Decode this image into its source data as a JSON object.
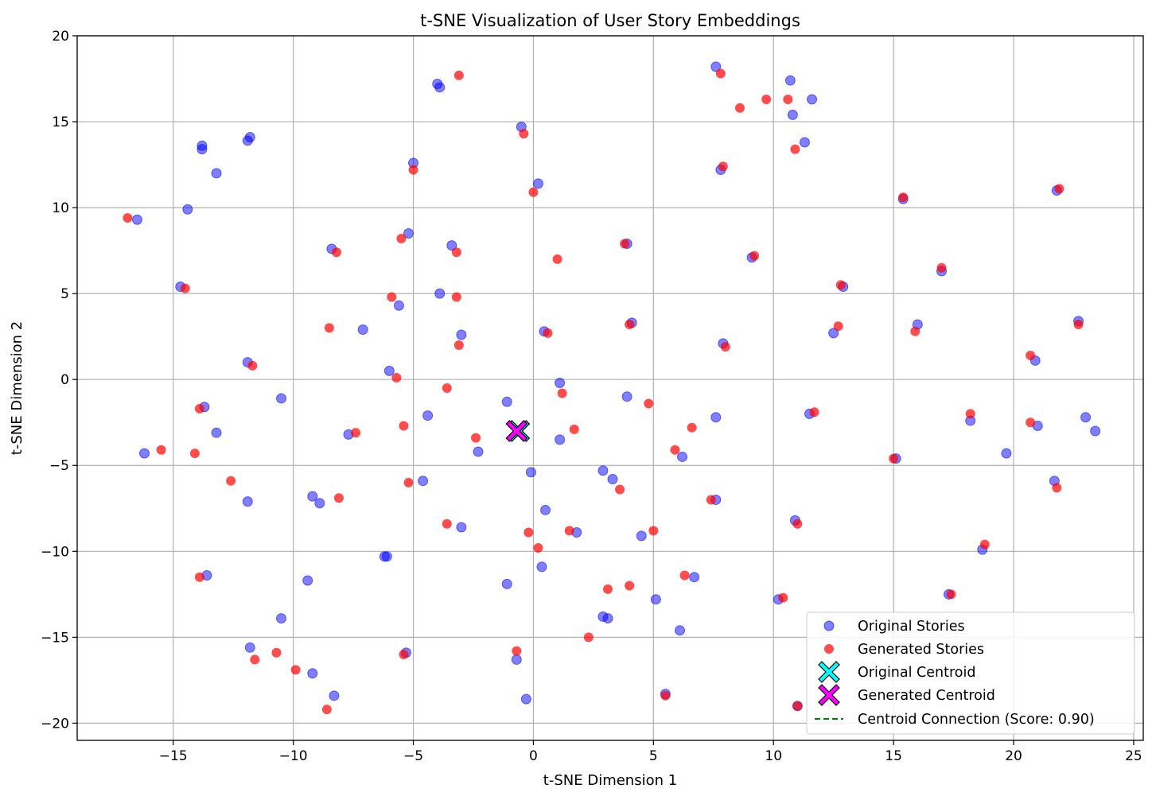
{
  "chart_data": {
    "type": "scatter",
    "title": "t-SNE Visualization of User Story Embeddings",
    "xlabel": "t-SNE Dimension 1",
    "ylabel": "t-SNE Dimension 2",
    "xlim": [
      -19,
      25.4
    ],
    "ylim": [
      -21,
      20
    ],
    "xticks": [
      -15,
      -10,
      -5,
      0,
      5,
      10,
      15,
      20,
      25
    ],
    "yticks": [
      -20,
      -15,
      -10,
      -5,
      0,
      5,
      10,
      15,
      20
    ],
    "grid": true,
    "legend_position": "bottom-right",
    "series": [
      {
        "name": "Original Stories",
        "color": "#0000ff",
        "points": [
          [
            -16.5,
            9.3
          ],
          [
            -14.4,
            9.9
          ],
          [
            -13.8,
            13.6
          ],
          [
            -13.8,
            13.4
          ],
          [
            -13.2,
            12.0
          ],
          [
            -11.8,
            14.1
          ],
          [
            -11.9,
            13.9
          ],
          [
            -14.7,
            5.4
          ],
          [
            -16.2,
            -4.3
          ],
          [
            -13.7,
            -1.6
          ],
          [
            -13.2,
            -3.1
          ],
          [
            -11.9,
            1.0
          ],
          [
            -11.9,
            -7.1
          ],
          [
            -10.5,
            -1.1
          ],
          [
            -13.6,
            -11.4
          ],
          [
            -11.8,
            -15.6
          ],
          [
            -10.5,
            -13.9
          ],
          [
            -9.4,
            -11.7
          ],
          [
            -9.2,
            -17.1
          ],
          [
            -9.2,
            -6.8
          ],
          [
            -8.9,
            -7.2
          ],
          [
            -8.3,
            -18.4
          ],
          [
            -8.4,
            7.6
          ],
          [
            -7.1,
            2.9
          ],
          [
            -7.7,
            -3.2
          ],
          [
            -6.1,
            -10.3
          ],
          [
            -6.2,
            -10.3
          ],
          [
            -6.0,
            0.5
          ],
          [
            -5.6,
            4.3
          ],
          [
            -4.6,
            -5.9
          ],
          [
            -4.4,
            -2.1
          ],
          [
            -5.3,
            -15.9
          ],
          [
            -5.2,
            8.5
          ],
          [
            -5.0,
            12.6
          ],
          [
            -4.0,
            17.2
          ],
          [
            -3.9,
            17.0
          ],
          [
            -3.9,
            5.0
          ],
          [
            -3.4,
            7.8
          ],
          [
            -3.0,
            2.6
          ],
          [
            -3.0,
            -8.6
          ],
          [
            -2.3,
            -4.2
          ],
          [
            -1.1,
            -1.3
          ],
          [
            -1.1,
            -11.9
          ],
          [
            -0.7,
            -16.3
          ],
          [
            -0.5,
            14.7
          ],
          [
            -0.3,
            -18.6
          ],
          [
            -0.1,
            -5.4
          ],
          [
            0.2,
            11.4
          ],
          [
            0.35,
            -10.9
          ],
          [
            0.45,
            2.8
          ],
          [
            0.5,
            -7.6
          ],
          [
            1.1,
            -0.2
          ],
          [
            1.1,
            -3.5
          ],
          [
            1.8,
            -8.9
          ],
          [
            2.9,
            -5.3
          ],
          [
            2.9,
            -13.8
          ],
          [
            3.1,
            -13.9
          ],
          [
            3.3,
            -5.8
          ],
          [
            3.9,
            7.9
          ],
          [
            3.9,
            -1.0
          ],
          [
            4.1,
            3.3
          ],
          [
            4.5,
            -9.1
          ],
          [
            5.1,
            -12.8
          ],
          [
            5.5,
            -18.3
          ],
          [
            6.1,
            -14.6
          ],
          [
            6.2,
            -4.5
          ],
          [
            6.7,
            -11.5
          ],
          [
            7.6,
            -2.2
          ],
          [
            7.6,
            -7.0
          ],
          [
            7.6,
            18.2
          ],
          [
            7.8,
            12.2
          ],
          [
            7.9,
            2.1
          ],
          [
            9.1,
            7.1
          ],
          [
            10.2,
            -12.8
          ],
          [
            10.7,
            17.4
          ],
          [
            10.8,
            15.4
          ],
          [
            10.9,
            -8.2
          ],
          [
            11.0,
            -19.0
          ],
          [
            11.3,
            13.8
          ],
          [
            11.5,
            -2.0
          ],
          [
            11.6,
            16.3
          ],
          [
            12.5,
            2.7
          ],
          [
            12.9,
            5.4
          ],
          [
            15.1,
            -4.6
          ],
          [
            15.4,
            10.5
          ],
          [
            16.0,
            3.2
          ],
          [
            17.0,
            6.3
          ],
          [
            17.3,
            -12.5
          ],
          [
            18.2,
            -2.4
          ],
          [
            18.7,
            -9.9
          ],
          [
            19.7,
            -4.3
          ],
          [
            20.9,
            1.1
          ],
          [
            21.0,
            -2.7
          ],
          [
            21.7,
            -5.9
          ],
          [
            21.8,
            11.0
          ],
          [
            22.7,
            3.4
          ],
          [
            23.0,
            -2.2
          ],
          [
            23.4,
            -3.0
          ]
        ]
      },
      {
        "name": "Generated Stories",
        "color": "#ff0000",
        "points": [
          [
            -16.9,
            9.4
          ],
          [
            -14.5,
            5.3
          ],
          [
            -15.5,
            -4.1
          ],
          [
            -14.1,
            -4.3
          ],
          [
            -13.9,
            -1.7
          ],
          [
            -13.9,
            -11.5
          ],
          [
            -12.6,
            -5.9
          ],
          [
            -11.7,
            0.8
          ],
          [
            -11.6,
            -16.3
          ],
          [
            -10.7,
            -15.9
          ],
          [
            -9.9,
            -16.9
          ],
          [
            -8.6,
            -19.2
          ],
          [
            -8.5,
            3.0
          ],
          [
            -8.2,
            7.4
          ],
          [
            -8.1,
            -6.9
          ],
          [
            -7.4,
            -3.1
          ],
          [
            -5.9,
            4.8
          ],
          [
            -5.7,
            0.1
          ],
          [
            -5.5,
            8.2
          ],
          [
            -5.4,
            -2.7
          ],
          [
            -5.2,
            -6.0
          ],
          [
            -5.0,
            12.2
          ],
          [
            -5.4,
            -16.0
          ],
          [
            -3.6,
            -0.5
          ],
          [
            -3.6,
            -8.4
          ],
          [
            -3.2,
            4.8
          ],
          [
            -3.2,
            7.4
          ],
          [
            -3.1,
            17.7
          ],
          [
            -3.1,
            2.0
          ],
          [
            -2.4,
            -3.4
          ],
          [
            -0.7,
            -15.8
          ],
          [
            -0.4,
            14.3
          ],
          [
            -0.2,
            -8.9
          ],
          [
            0.0,
            10.9
          ],
          [
            0.2,
            -9.8
          ],
          [
            0.6,
            2.7
          ],
          [
            1.0,
            7.0
          ],
          [
            1.2,
            -0.8
          ],
          [
            1.5,
            -8.8
          ],
          [
            1.7,
            -2.9
          ],
          [
            2.3,
            -15.0
          ],
          [
            3.1,
            -12.2
          ],
          [
            3.6,
            -6.4
          ],
          [
            3.8,
            7.9
          ],
          [
            4.0,
            -12.0
          ],
          [
            4.0,
            3.2
          ],
          [
            4.8,
            -1.4
          ],
          [
            5.0,
            -8.8
          ],
          [
            5.5,
            -18.4
          ],
          [
            5.9,
            -4.1
          ],
          [
            6.3,
            -11.4
          ],
          [
            6.6,
            -2.8
          ],
          [
            7.4,
            -7.0
          ],
          [
            7.8,
            17.8
          ],
          [
            7.9,
            12.4
          ],
          [
            8.0,
            1.9
          ],
          [
            8.6,
            15.8
          ],
          [
            9.2,
            7.2
          ],
          [
            9.7,
            16.3
          ],
          [
            10.4,
            -12.7
          ],
          [
            10.6,
            16.3
          ],
          [
            10.9,
            13.4
          ],
          [
            11.0,
            -8.4
          ],
          [
            11.0,
            -19.0
          ],
          [
            11.7,
            -1.9
          ],
          [
            12.7,
            3.1
          ],
          [
            12.8,
            5.5
          ],
          [
            15.0,
            -4.6
          ],
          [
            15.4,
            10.6
          ],
          [
            15.9,
            2.8
          ],
          [
            17.0,
            6.5
          ],
          [
            17.4,
            -12.5
          ],
          [
            18.2,
            -2.0
          ],
          [
            18.8,
            -9.6
          ],
          [
            20.7,
            1.4
          ],
          [
            20.7,
            -2.5
          ],
          [
            21.8,
            -6.3
          ],
          [
            21.9,
            11.1
          ],
          [
            22.7,
            3.2
          ]
        ]
      }
    ],
    "centroids": [
      {
        "name": "Original Centroid",
        "x": -0.6,
        "y": -3.0,
        "color": "#00ffff"
      },
      {
        "name": "Generated Centroid",
        "x": -0.7,
        "y": -3.0,
        "color": "#ff00ff"
      }
    ],
    "connection": {
      "name": "Centroid Connection (Score: 0.90)",
      "color": "#008000"
    }
  }
}
